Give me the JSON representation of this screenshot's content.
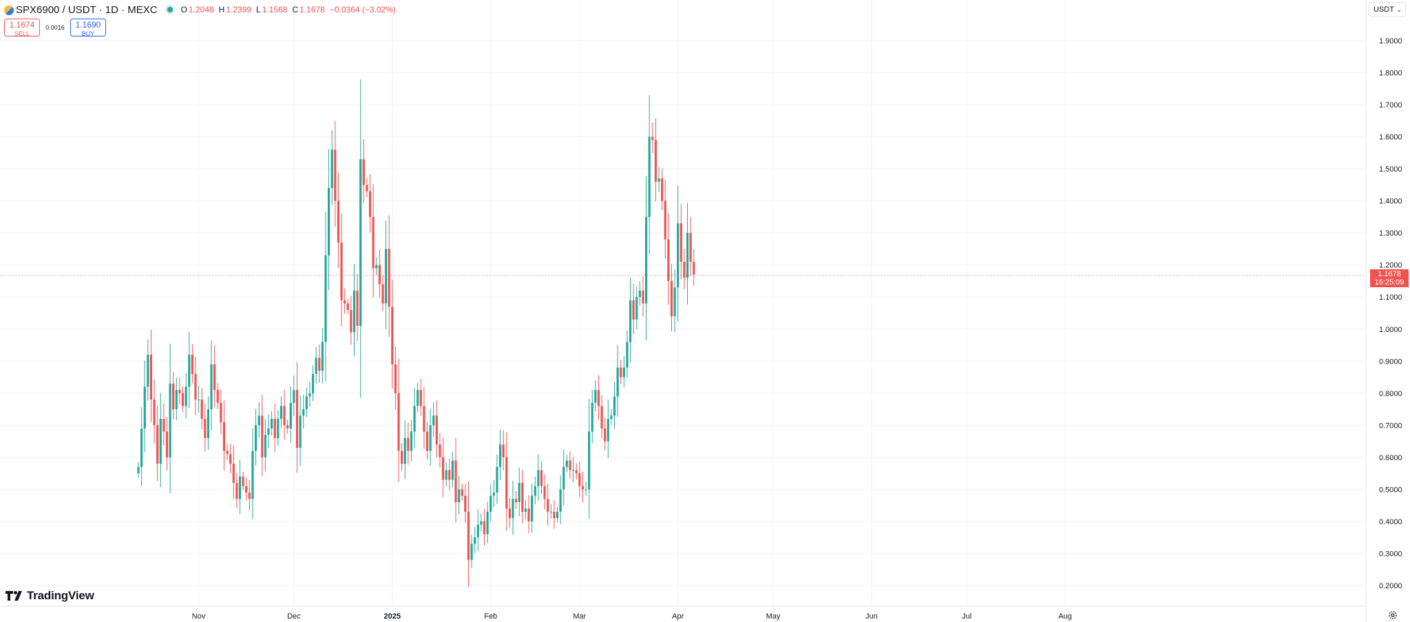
{
  "header": {
    "symbol": "SPX6900 / USDT · 1D · MEXC",
    "open_label": "O",
    "open": "1.2048",
    "high_label": "H",
    "high": "1.2399",
    "low_label": "L",
    "low": "1.1568",
    "close_label": "C",
    "close": "1.1678",
    "change": "−0.0364 (−3.02%)"
  },
  "trade": {
    "sell_price": "1.1674",
    "sell_label": "SELL",
    "spread": "0.0016",
    "buy_price": "1.1690",
    "buy_label": "BUY"
  },
  "currency": {
    "label": "USDT"
  },
  "last_price": {
    "value": "1.1678",
    "countdown": "16:25:09"
  },
  "brand": {
    "name": "TradingView"
  },
  "colors": {
    "up": "#26a69a",
    "down": "#ef5350",
    "grid": "#f0f3fa",
    "text": "#131722"
  },
  "chart_data": {
    "type": "candlestick",
    "title": "SPX6900 / USDT · 1D · MEXC",
    "ylim": [
      0.2,
      1.9
    ],
    "y_ticks": [
      "1.9000",
      "1.8000",
      "1.7000",
      "1.6000",
      "1.5000",
      "1.4000",
      "1.3000",
      "1.2000",
      "1.1000",
      "1.0000",
      "0.9000",
      "0.8000",
      "0.7000",
      "0.6000",
      "0.5000",
      "0.4000",
      "0.3000",
      "0.2000"
    ],
    "x_ticks": [
      {
        "label": "Nov",
        "bold": false
      },
      {
        "label": "Dec",
        "bold": false
      },
      {
        "label": "2025",
        "bold": true
      },
      {
        "label": "Feb",
        "bold": false
      },
      {
        "label": "Mar",
        "bold": false
      },
      {
        "label": "Apr",
        "bold": false
      },
      {
        "label": "May",
        "bold": false
      },
      {
        "label": "Jun",
        "bold": false
      },
      {
        "label": "Jul",
        "bold": false
      },
      {
        "label": "Aug",
        "bold": false
      }
    ],
    "start_date": "2024-10-13",
    "closes": [
      0.57,
      0.69,
      0.82,
      0.92,
      0.78,
      0.7,
      0.58,
      0.72,
      0.68,
      0.6,
      0.83,
      0.75,
      0.81,
      0.8,
      0.76,
      0.82,
      0.92,
      0.86,
      0.78,
      0.78,
      0.72,
      0.66,
      0.75,
      0.89,
      0.81,
      0.77,
      0.71,
      0.62,
      0.61,
      0.58,
      0.52,
      0.47,
      0.54,
      0.51,
      0.49,
      0.47,
      0.62,
      0.7,
      0.73,
      0.6,
      0.67,
      0.69,
      0.72,
      0.66,
      0.72,
      0.76,
      0.7,
      0.69,
      0.77,
      0.81,
      0.63,
      0.73,
      0.75,
      0.79,
      0.8,
      0.86,
      0.91,
      0.87,
      0.96,
      1.23,
      1.44,
      1.56,
      1.4,
      1.27,
      1.09,
      1.08,
      1.06,
      0.99,
      1.12,
      1.01,
      1.53,
      1.45,
      1.43,
      1.35,
      1.19,
      1.2,
      1.14,
      1.08,
      1.25,
      1.07,
      0.89,
      0.8,
      0.62,
      0.58,
      0.66,
      0.62,
      0.68,
      0.76,
      0.81,
      0.76,
      0.68,
      0.62,
      0.7,
      0.73,
      0.64,
      0.6,
      0.53,
      0.56,
      0.53,
      0.59,
      0.46,
      0.5,
      0.48,
      0.43,
      0.28,
      0.33,
      0.35,
      0.39,
      0.4,
      0.36,
      0.43,
      0.48,
      0.49,
      0.57,
      0.64,
      0.6,
      0.44,
      0.41,
      0.47,
      0.46,
      0.52,
      0.43,
      0.44,
      0.4,
      0.48,
      0.51,
      0.56,
      0.51,
      0.47,
      0.43,
      0.43,
      0.41,
      0.43,
      0.5,
      0.57,
      0.59,
      0.56,
      0.56,
      0.55,
      0.51,
      0.5,
      0.5,
      0.68,
      0.77,
      0.81,
      0.76,
      0.69,
      0.65,
      0.72,
      0.73,
      0.79,
      0.88,
      0.85,
      0.88,
      0.96,
      1.09,
      1.03,
      1.1,
      1.12,
      1.08,
      1.35,
      1.6,
      1.59,
      1.46,
      1.47,
      1.4,
      1.28,
      1.15,
      1.04,
      1.13,
      1.33,
      1.21,
      1.16,
      1.3,
      1.21,
      1.17
    ],
    "price_scale_precision": 4
  }
}
